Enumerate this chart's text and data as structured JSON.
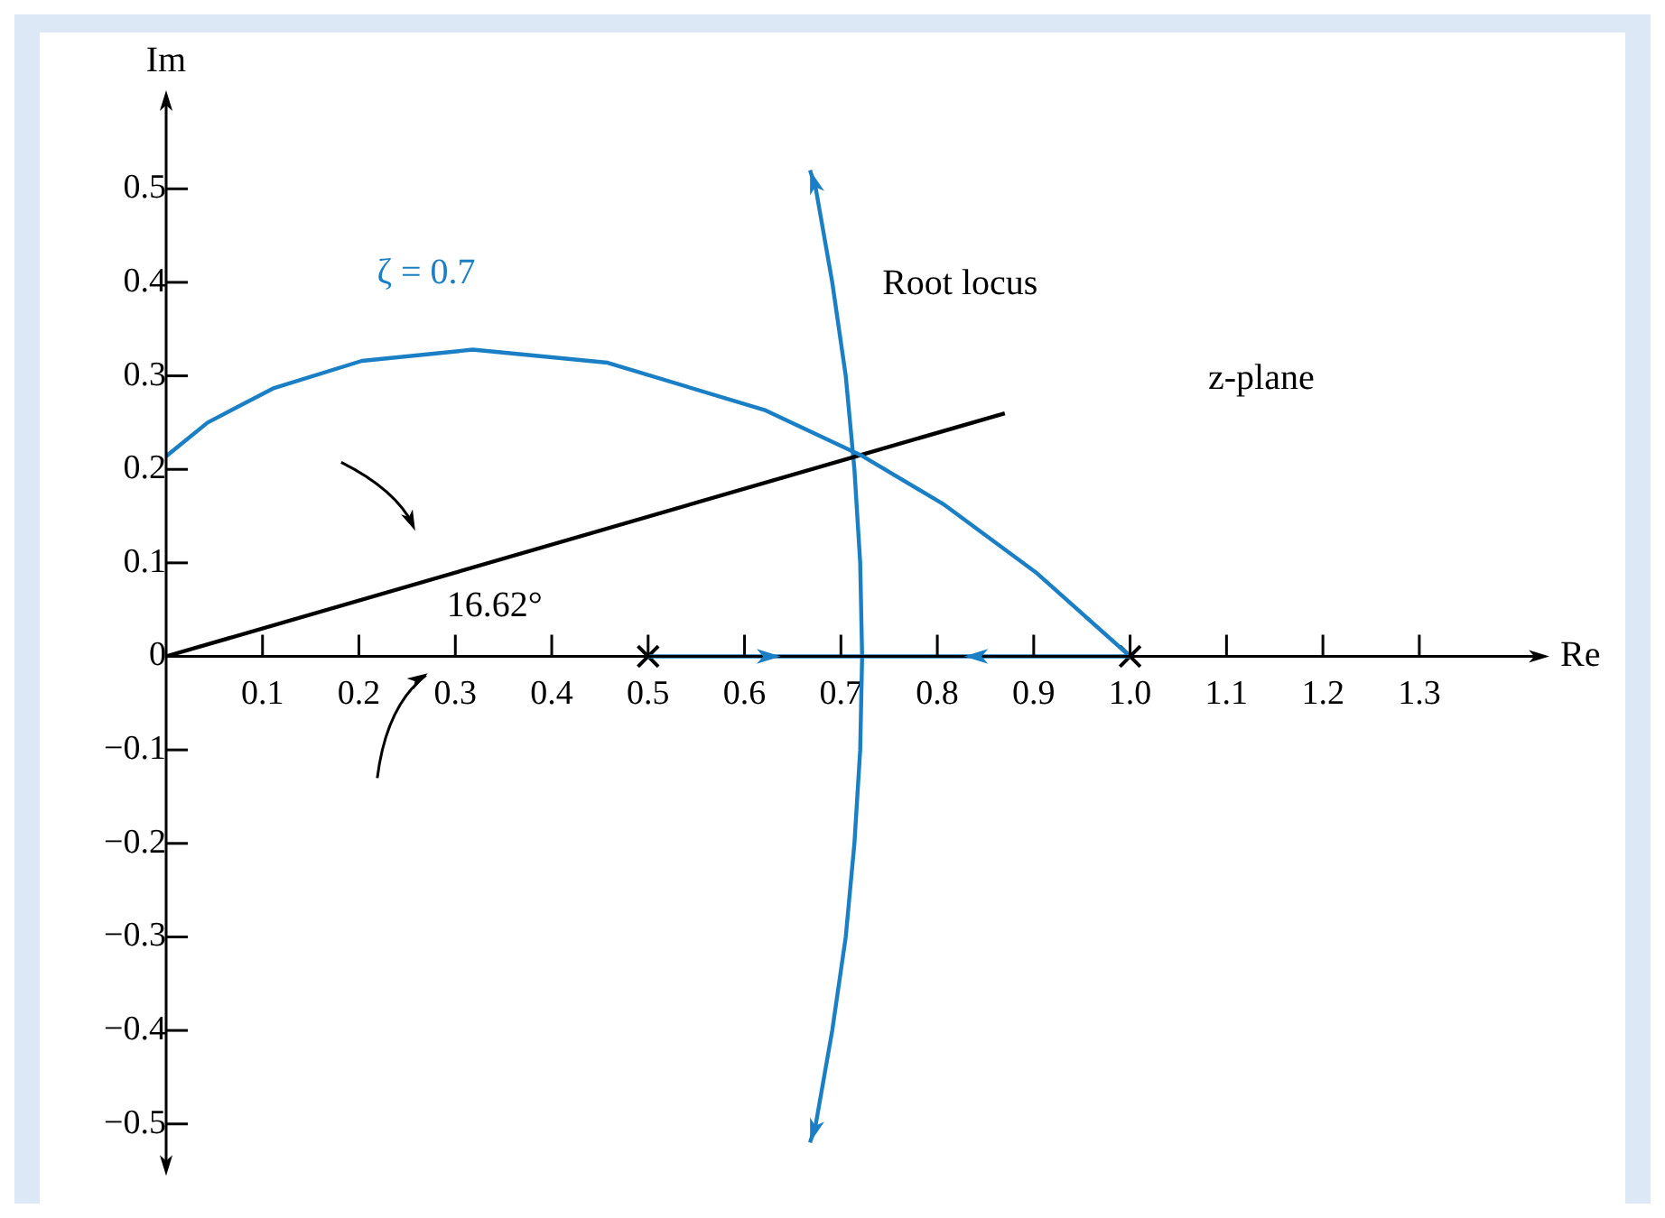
{
  "chart_data": {
    "type": "line",
    "xlabel": "Re",
    "ylabel": "Im",
    "xlim": [
      0,
      1.42
    ],
    "ylim": [
      -0.54,
      0.59
    ],
    "xticks": [
      0.1,
      0.2,
      0.3,
      0.4,
      0.5,
      0.6,
      0.7,
      0.8,
      0.9,
      {
        "value": 1.0,
        "label": "1.0"
      },
      1.1,
      1.2,
      1.3
    ],
    "yticks": [
      {
        "value": -0.5,
        "label": "−0.5"
      },
      {
        "value": -0.4,
        "label": "−0.4"
      },
      {
        "value": -0.3,
        "label": "−0.3"
      },
      {
        "value": -0.2,
        "label": "−0.2"
      },
      {
        "value": -0.1,
        "label": "−0.1"
      },
      0,
      0.1,
      0.2,
      0.3,
      0.4,
      0.5
    ],
    "grid": false,
    "legend": false,
    "marker": "none",
    "line_style": "solid",
    "series": [
      {
        "color": "#1a7fc4",
        "x": [
          1.0,
          0.902,
          0.806,
          0.721,
          0.622,
          0.458,
          0.318,
          0.203,
          0.112,
          0.043,
          0.0
        ],
        "values": [
          0.0,
          0.09,
          0.163,
          0.215,
          0.263,
          0.314,
          0.328,
          0.316,
          0.287,
          0.25,
          0.214
        ]
      },
      {
        "color": "#000000",
        "x": [
          0.0,
          0.87
        ],
        "values": [
          0.0,
          0.26
        ]
      },
      {
        "color": "#1a7fc4",
        "x": [
          0.668,
          0.674,
          0.691,
          0.705,
          0.714,
          0.72,
          0.722,
          0.72,
          0.714,
          0.705,
          0.691,
          0.674,
          0.668
        ],
        "values": [
          -0.52,
          -0.5,
          -0.4,
          -0.3,
          -0.2,
          -0.1,
          0.0,
          0.1,
          0.2,
          0.3,
          0.4,
          0.5,
          0.52
        ]
      },
      {
        "color": "#1a7fc4",
        "x": [
          0.5,
          0.722,
          1.0
        ],
        "values": [
          0.0,
          0.0,
          0.0
        ]
      },
      {
        "type": "scatter",
        "color": "#000000",
        "marker": "cross",
        "x": [
          0.5,
          1.0
        ],
        "values": [
          0.0,
          0.0
        ]
      }
    ],
    "annotations": [
      "ζ = 0.7",
      "Root locus",
      "16.62°",
      "z-plane"
    ]
  }
}
